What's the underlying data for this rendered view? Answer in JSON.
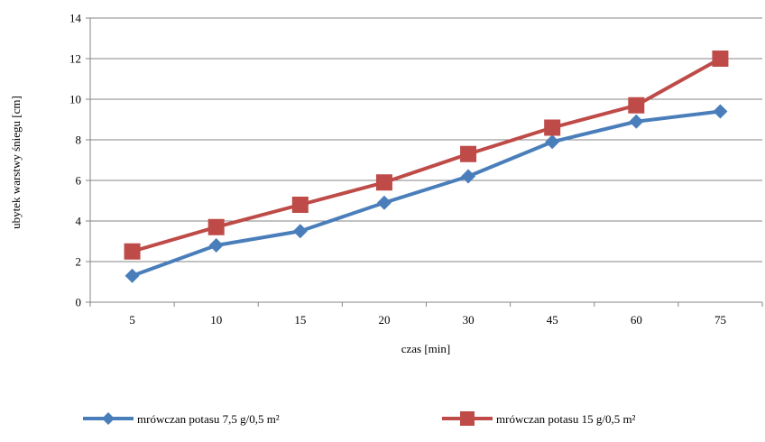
{
  "chart_data": {
    "type": "line",
    "title": "",
    "xlabel": "czas [min]",
    "ylabel": "ubytek warstwy śniegu [cm]",
    "categories": [
      "5",
      "10",
      "15",
      "20",
      "30",
      "45",
      "60",
      "75"
    ],
    "ylim": [
      0,
      14
    ],
    "yticks": [
      0,
      2,
      4,
      6,
      8,
      10,
      12,
      14
    ],
    "grid": true,
    "legend_position": "bottom",
    "series": [
      {
        "name": "mrówczan potasu 7,5 g/0,5 m²",
        "color": "#4A7EBB",
        "marker": "diamond",
        "values": [
          1.3,
          2.8,
          3.5,
          4.9,
          6.2,
          7.9,
          8.9,
          9.4
        ]
      },
      {
        "name": "mrówczan potasu 15 g/0,5 m²",
        "color": "#BE4B48",
        "marker": "square",
        "values": [
          2.5,
          3.7,
          4.8,
          5.9,
          7.3,
          8.6,
          9.7,
          12.0
        ]
      }
    ]
  }
}
